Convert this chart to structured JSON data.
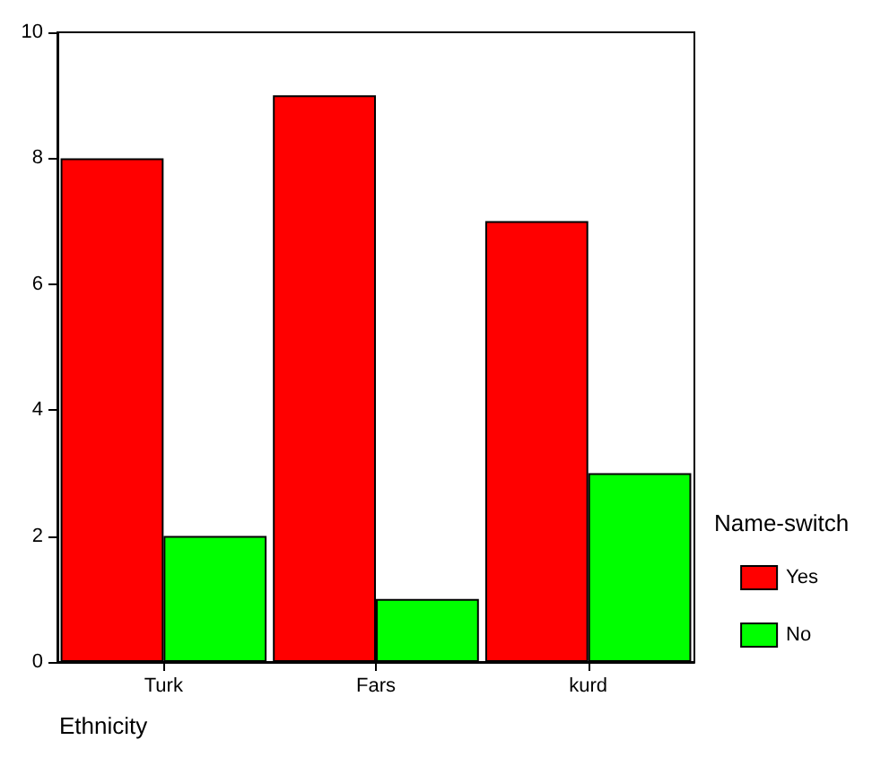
{
  "chart_data": {
    "type": "bar",
    "xlabel": "Ethnicity",
    "legend_title": "Name-switch",
    "categories": [
      "Turk",
      "Fars",
      "kurd"
    ],
    "series": [
      {
        "name": "Yes",
        "color": "#ff0000",
        "values": [
          8,
          9,
          7
        ]
      },
      {
        "name": "No",
        "color": "#00ff00",
        "values": [
          2,
          1,
          3
        ]
      }
    ],
    "ylim": [
      0,
      10
    ],
    "yticks": [
      0,
      2,
      4,
      6,
      8,
      10
    ],
    "grid": false,
    "legend": "right"
  }
}
